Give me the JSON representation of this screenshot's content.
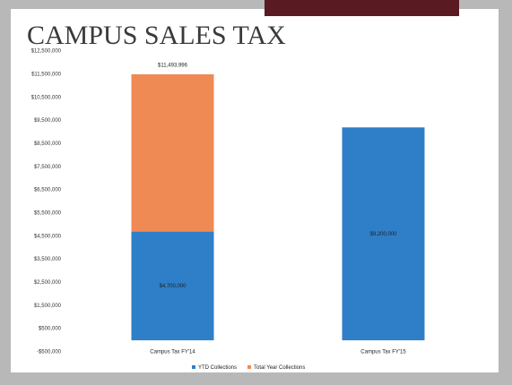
{
  "chart_data": {
    "type": "stacked_bar",
    "title": "CAMPUS SALES TAX",
    "categories": [
      "Campus Tax FY'14",
      "Campus Tax FY'15"
    ],
    "series": [
      {
        "name": "YTD Collections",
        "color": "#2f7fc8",
        "values": [
          4700000,
          9200000
        ],
        "value_labels": [
          "$4,700,000",
          "$9,200,000"
        ]
      },
      {
        "name": "Total Year Collections",
        "color": "#f08a55",
        "values": [
          6793996,
          null
        ]
      }
    ],
    "total_labels": [
      "$11,493,996",
      null
    ],
    "ylim": [
      -500000,
      12500000
    ],
    "yticks": [
      {
        "value": -500000,
        "label": "-$500,000"
      },
      {
        "value": 500000,
        "label": "$500,000"
      },
      {
        "value": 1500000,
        "label": "$1,500,000"
      },
      {
        "value": 2500000,
        "label": "$2,500,000"
      },
      {
        "value": 3500000,
        "label": "$3,500,000"
      },
      {
        "value": 4500000,
        "label": "$4,500,000"
      },
      {
        "value": 5500000,
        "label": "$5,500,000"
      },
      {
        "value": 6500000,
        "label": "$6,500,000"
      },
      {
        "value": 7500000,
        "label": "$7,500,000"
      },
      {
        "value": 8500000,
        "label": "$8,500,000"
      },
      {
        "value": 9500000,
        "label": "$9,500,000"
      },
      {
        "value": 10500000,
        "label": "$10,500,000"
      },
      {
        "value": 11500000,
        "label": "$11,500,000"
      },
      {
        "value": 12500000,
        "label": "$12,500,000"
      }
    ],
    "grid": false,
    "legend": "bottom"
  }
}
